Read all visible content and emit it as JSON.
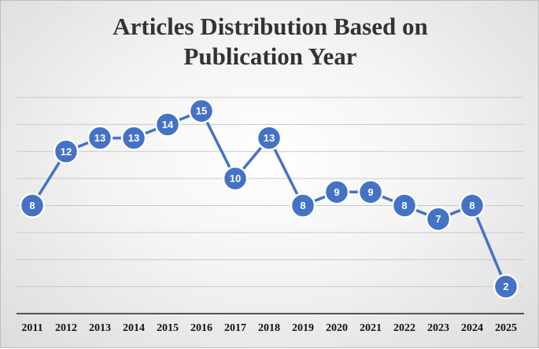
{
  "chart_data": {
    "type": "line",
    "title": "Articles Distribution Based on Publication Year",
    "title_lines": [
      "Articles Distribution Based on",
      "Publication Year"
    ],
    "xlabel": "",
    "ylabel": "",
    "categories": [
      "2011",
      "2012",
      "2013",
      "2014",
      "2015",
      "2016",
      "2017",
      "2018",
      "2019",
      "2020",
      "2021",
      "2022",
      "2023",
      "2024",
      "2025"
    ],
    "series": [
      {
        "values": [
          8,
          12,
          13,
          13,
          14,
          15,
          10,
          13,
          8,
          9,
          9,
          8,
          7,
          8,
          2
        ]
      }
    ],
    "ylim": [
      0,
      16
    ],
    "grid": true,
    "legend": "none",
    "colors": {
      "series": "#4472c4",
      "marker_outline": "#ffffff",
      "label_text": "#ffffff",
      "grid": "#c8c8c8"
    }
  }
}
